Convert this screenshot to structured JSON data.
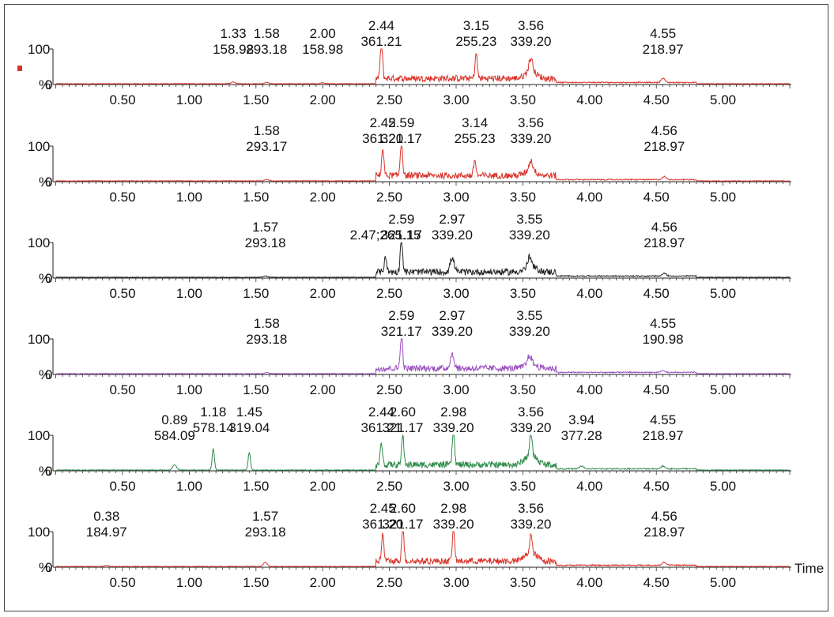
{
  "chart_data": {
    "type": "line",
    "x_axis_label": "Time",
    "xlim": [
      0,
      5.5
    ],
    "x_ticks": [
      "0.50",
      "1.00",
      "1.50",
      "2.00",
      "2.50",
      "3.00",
      "3.50",
      "4.00",
      "4.50",
      "5.00"
    ],
    "y_ticks": [
      "100",
      "%",
      "0"
    ],
    "panel_marker_color": "#d9342b",
    "panels": [
      {
        "color": "#d9342b",
        "peaks": [
          {
            "x": 1.33,
            "y": 5,
            "label": [
              "1.33",
              "158.98"
            ]
          },
          {
            "x": 1.58,
            "y": 4,
            "label": [
              "1.58",
              "293.18"
            ]
          },
          {
            "x": 2.0,
            "y": 3,
            "label": [
              "2.00",
              "158.98"
            ]
          },
          {
            "x": 2.44,
            "y": 100,
            "label": [
              "2.44",
              "361.21"
            ]
          },
          {
            "x": 3.15,
            "y": 70,
            "label": [
              "3.15",
              "255.23"
            ]
          },
          {
            "x": 3.56,
            "y": 38,
            "label": [
              "3.56",
              "339.20"
            ]
          },
          {
            "x": 4.55,
            "y": 12,
            "label": [
              "4.55",
              "218.97"
            ]
          }
        ]
      },
      {
        "color": "#d9342b",
        "peaks": [
          {
            "x": 1.58,
            "y": 4,
            "label": [
              "1.58",
              "293.17"
            ]
          },
          {
            "x": 2.45,
            "y": 75,
            "label": [
              "2.45",
              "361.20"
            ]
          },
          {
            "x": 2.59,
            "y": 100,
            "label": [
              "2.59",
              "321.17"
            ]
          },
          {
            "x": 3.14,
            "y": 45,
            "label": [
              "3.14",
              "255.23"
            ]
          },
          {
            "x": 3.56,
            "y": 28,
            "label": [
              "3.56",
              "339.20"
            ]
          },
          {
            "x": 4.56,
            "y": 8,
            "label": [
              "4.56",
              "218.97"
            ]
          }
        ]
      },
      {
        "color": "#222222",
        "peaks": [
          {
            "x": 1.57,
            "y": 4,
            "label": [
              "1.57",
              "293.18"
            ]
          },
          {
            "x": 2.47,
            "y": 45,
            "label": [
              "2.47;265.15"
            ]
          },
          {
            "x": 2.59,
            "y": 100,
            "label": [
              "2.59",
              "321.17"
            ]
          },
          {
            "x": 2.97,
            "y": 40,
            "label": [
              "2.97",
              "339.20"
            ]
          },
          {
            "x": 3.55,
            "y": 28,
            "label": [
              "3.55",
              "339.20"
            ]
          },
          {
            "x": 4.56,
            "y": 8,
            "label": [
              "4.56",
              "218.97"
            ]
          }
        ]
      },
      {
        "color": "#9b4fc0",
        "peaks": [
          {
            "x": 1.58,
            "y": 3,
            "label": [
              "1.58",
              "293.18"
            ]
          },
          {
            "x": 2.59,
            "y": 100,
            "label": [
              "2.59",
              "321.17"
            ]
          },
          {
            "x": 2.97,
            "y": 40,
            "label": [
              "2.97",
              "339.20"
            ]
          },
          {
            "x": 3.55,
            "y": 25,
            "label": [
              "3.55",
              "339.20"
            ]
          },
          {
            "x": 4.55,
            "y": 5,
            "label": [
              "4.55",
              "190.98"
            ]
          }
        ]
      },
      {
        "color": "#2e8b4a",
        "peaks": [
          {
            "x": 0.89,
            "y": 15,
            "label": [
              "0.89",
              "584.09"
            ]
          },
          {
            "x": 1.18,
            "y": 60,
            "label": [
              "1.18",
              "578.14"
            ]
          },
          {
            "x": 1.45,
            "y": 50,
            "label": [
              "1.45",
              "319.04"
            ]
          },
          {
            "x": 2.44,
            "y": 60,
            "label": [
              "2.44",
              "361.21"
            ]
          },
          {
            "x": 2.6,
            "y": 85,
            "label": [
              "2.60",
              "321.17"
            ]
          },
          {
            "x": 2.98,
            "y": 100,
            "label": [
              "2.98",
              "339.20"
            ]
          },
          {
            "x": 3.56,
            "y": 60,
            "label": [
              "3.56",
              "339.20"
            ]
          },
          {
            "x": 3.94,
            "y": 8,
            "label": [
              "3.94",
              "377.28"
            ]
          },
          {
            "x": 4.55,
            "y": 8,
            "label": [
              "4.55",
              "218.97"
            ]
          }
        ]
      },
      {
        "color": "#d9342b",
        "peaks": [
          {
            "x": 0.38,
            "y": 3,
            "label": [
              "0.38",
              "184.97"
            ]
          },
          {
            "x": 1.57,
            "y": 12,
            "label": [
              "1.57",
              "293.18"
            ]
          },
          {
            "x": 2.45,
            "y": 75,
            "label": [
              "2.45",
              "361.20"
            ]
          },
          {
            "x": 2.6,
            "y": 100,
            "label": [
              "2.60",
              "321.17"
            ]
          },
          {
            "x": 2.98,
            "y": 98,
            "label": [
              "2.98",
              "339.20"
            ]
          },
          {
            "x": 3.56,
            "y": 50,
            "label": [
              "3.56",
              "339.20"
            ]
          },
          {
            "x": 4.56,
            "y": 8,
            "label": [
              "4.56",
              "218.97"
            ]
          }
        ]
      }
    ]
  }
}
